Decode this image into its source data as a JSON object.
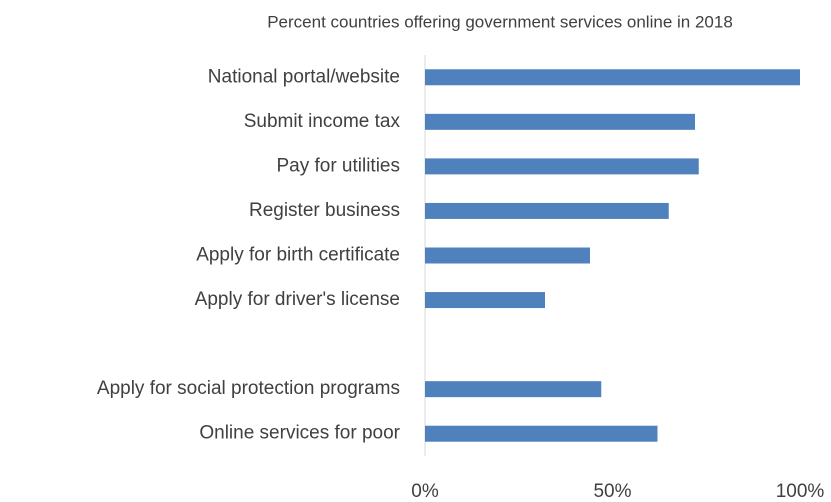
{
  "chart_data": {
    "type": "bar",
    "orientation": "horizontal",
    "title": "Percent countries offering government services online in 2018",
    "categories": [
      "National portal/website",
      "Submit income tax",
      "Pay for utilities",
      "Register business",
      "Apply for birth certificate",
      "Apply for driver's license",
      null,
      "Apply for social protection programs",
      "Online services for poor"
    ],
    "values": [
      100,
      72,
      73,
      65,
      44,
      32,
      null,
      47,
      62
    ],
    "color": "#4f81bd",
    "xlim": [
      0,
      100
    ],
    "xticks": [
      {
        "value": 0,
        "label": "0%"
      },
      {
        "value": 50,
        "label": "50%"
      },
      {
        "value": 100,
        "label": "100%"
      }
    ],
    "grid": false
  }
}
